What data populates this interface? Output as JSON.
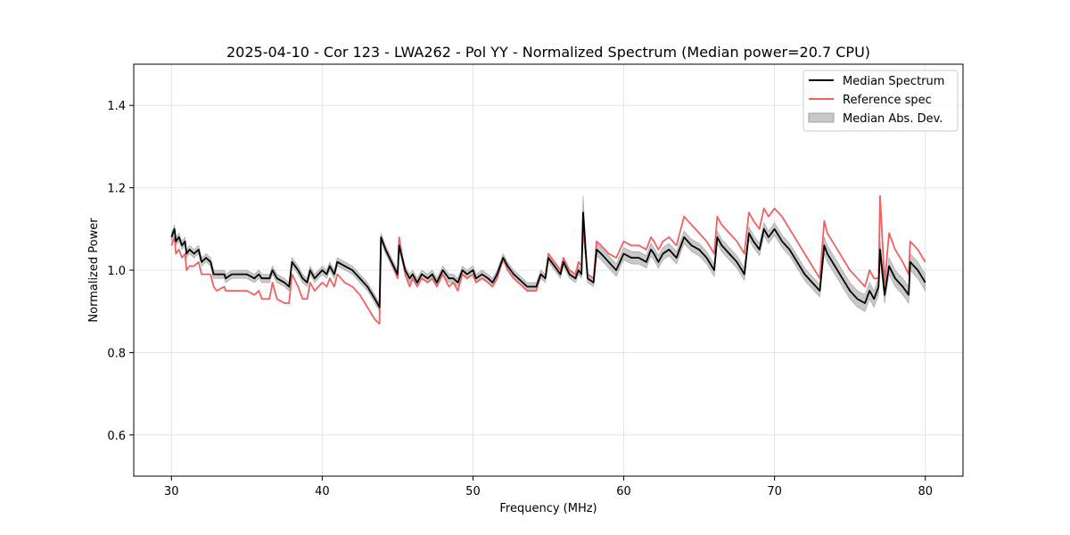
{
  "chart_data": {
    "type": "line",
    "title": "2025-04-10 - Cor 123 - LWA262 - Pol YY - Normalized Spectrum (Median power=20.7 CPU)",
    "xlabel": "Frequency (MHz)",
    "ylabel": "Normalized Power",
    "xlim": [
      27.5,
      82.5
    ],
    "ylim": [
      0.5,
      1.5
    ],
    "xticks": [
      30,
      40,
      50,
      60,
      70,
      80
    ],
    "xtick_labels": [
      "30",
      "40",
      "50",
      "60",
      "70",
      "80"
    ],
    "yticks": [
      0.6,
      0.8,
      1.0,
      1.2,
      1.4
    ],
    "ytick_labels": [
      "0.6",
      "0.8",
      "1.0",
      "1.2",
      "1.4"
    ],
    "grid": true,
    "legend_position": "top-right",
    "series": [
      {
        "name": "Median Spectrum",
        "color": "#000000",
        "x": [
          30.0,
          30.2,
          30.3,
          30.5,
          30.7,
          30.9,
          31.0,
          31.2,
          31.5,
          31.8,
          32.0,
          32.3,
          32.6,
          32.8,
          33.0,
          33.5,
          33.6,
          34.0,
          34.5,
          35.0,
          35.5,
          35.8,
          36.0,
          36.5,
          36.7,
          37.0,
          37.5,
          37.8,
          38.0,
          38.4,
          38.7,
          39.0,
          39.2,
          39.5,
          40.0,
          40.3,
          40.5,
          40.8,
          41.0,
          41.5,
          42.0,
          42.5,
          43.0,
          43.5,
          43.8,
          43.9,
          44.2,
          44.6,
          45.0,
          45.1,
          45.5,
          45.8,
          46.0,
          46.3,
          46.6,
          47.0,
          47.3,
          47.6,
          48.0,
          48.4,
          48.7,
          49.0,
          49.3,
          49.6,
          50.0,
          50.2,
          50.6,
          51.0,
          51.3,
          51.6,
          52.0,
          52.3,
          52.7,
          53.0,
          53.3,
          53.6,
          54.0,
          54.2,
          54.5,
          54.8,
          55.0,
          55.4,
          55.8,
          56.0,
          56.4,
          56.8,
          57.0,
          57.2,
          57.3,
          57.6,
          58.0,
          58.2,
          58.5,
          59.0,
          59.5,
          60.0,
          60.5,
          61.0,
          61.5,
          61.8,
          62.0,
          62.3,
          62.6,
          63.0,
          63.5,
          64.0,
          64.5,
          65.0,
          65.5,
          66.0,
          66.2,
          66.5,
          67.0,
          67.5,
          68.0,
          68.3,
          68.6,
          69.0,
          69.3,
          69.6,
          69.8,
          70.0,
          70.5,
          71.0,
          71.5,
          72.0,
          72.5,
          73.0,
          73.3,
          73.5,
          74.0,
          74.5,
          75.0,
          75.5,
          76.0,
          76.3,
          76.6,
          76.9,
          77.0,
          77.3,
          77.6,
          78.0,
          78.5,
          78.9,
          79.0,
          79.5,
          80.0
        ],
        "y": [
          1.08,
          1.1,
          1.07,
          1.08,
          1.06,
          1.07,
          1.04,
          1.05,
          1.04,
          1.05,
          1.02,
          1.03,
          1.02,
          0.99,
          0.99,
          0.99,
          0.98,
          0.99,
          0.99,
          0.99,
          0.98,
          0.99,
          0.98,
          0.98,
          1.0,
          0.98,
          0.97,
          0.96,
          1.02,
          1.0,
          0.98,
          0.97,
          1.0,
          0.98,
          1.0,
          0.99,
          1.01,
          0.99,
          1.02,
          1.01,
          1.0,
          0.98,
          0.96,
          0.93,
          0.91,
          1.08,
          1.05,
          1.02,
          0.99,
          1.06,
          1.0,
          0.98,
          0.99,
          0.97,
          0.99,
          0.98,
          0.99,
          0.97,
          1.0,
          0.98,
          0.98,
          0.97,
          1.0,
          0.99,
          1.0,
          0.98,
          0.99,
          0.98,
          0.97,
          0.99,
          1.03,
          1.01,
          0.99,
          0.98,
          0.97,
          0.96,
          0.96,
          0.96,
          0.99,
          0.98,
          1.03,
          1.01,
          0.99,
          1.02,
          0.99,
          0.98,
          1.0,
          0.99,
          1.14,
          0.98,
          0.97,
          1.05,
          1.04,
          1.02,
          1.0,
          1.04,
          1.03,
          1.03,
          1.02,
          1.05,
          1.04,
          1.02,
          1.04,
          1.05,
          1.03,
          1.08,
          1.06,
          1.05,
          1.03,
          1.0,
          1.08,
          1.06,
          1.04,
          1.02,
          0.99,
          1.09,
          1.07,
          1.05,
          1.1,
          1.08,
          1.09,
          1.1,
          1.07,
          1.05,
          1.02,
          0.99,
          0.97,
          0.95,
          1.06,
          1.04,
          1.01,
          0.98,
          0.95,
          0.93,
          0.92,
          0.95,
          0.93,
          0.96,
          1.05,
          0.94,
          1.01,
          0.98,
          0.96,
          0.94,
          1.02,
          1.0,
          0.97
        ],
        "band_halfwidth": [
          0.01,
          0.01,
          0.01,
          0.01,
          0.01,
          0.01,
          0.01,
          0.01,
          0.01,
          0.01,
          0.01,
          0.01,
          0.01,
          0.01,
          0.01,
          0.01,
          0.01,
          0.01,
          0.01,
          0.01,
          0.01,
          0.01,
          0.01,
          0.01,
          0.01,
          0.01,
          0.01,
          0.01,
          0.01,
          0.01,
          0.01,
          0.01,
          0.01,
          0.01,
          0.01,
          0.01,
          0.01,
          0.01,
          0.01,
          0.01,
          0.01,
          0.01,
          0.01,
          0.01,
          0.01,
          0.01,
          0.01,
          0.01,
          0.01,
          0.01,
          0.01,
          0.01,
          0.01,
          0.01,
          0.01,
          0.01,
          0.01,
          0.01,
          0.01,
          0.01,
          0.01,
          0.01,
          0.01,
          0.01,
          0.01,
          0.01,
          0.01,
          0.01,
          0.01,
          0.01,
          0.01,
          0.01,
          0.01,
          0.01,
          0.01,
          0.01,
          0.01,
          0.01,
          0.01,
          0.01,
          0.01,
          0.01,
          0.01,
          0.01,
          0.01,
          0.01,
          0.01,
          0.01,
          0.04,
          0.01,
          0.01,
          0.015,
          0.015,
          0.015,
          0.015,
          0.015,
          0.015,
          0.015,
          0.015,
          0.015,
          0.015,
          0.015,
          0.015,
          0.015,
          0.015,
          0.015,
          0.015,
          0.015,
          0.015,
          0.015,
          0.015,
          0.015,
          0.015,
          0.015,
          0.015,
          0.015,
          0.015,
          0.015,
          0.015,
          0.015,
          0.015,
          0.015,
          0.015,
          0.015,
          0.015,
          0.015,
          0.015,
          0.015,
          0.02,
          0.02,
          0.02,
          0.02,
          0.02,
          0.02,
          0.02,
          0.02,
          0.02,
          0.02,
          0.02,
          0.02,
          0.02,
          0.02,
          0.02,
          0.02,
          0.02,
          0.02,
          0.02
        ]
      },
      {
        "name": "Reference spec",
        "color": "#f06060",
        "x": [
          30.0,
          30.2,
          30.3,
          30.5,
          30.7,
          30.9,
          31.0,
          31.2,
          31.5,
          31.8,
          32.0,
          32.3,
          32.6,
          32.8,
          33.0,
          33.5,
          33.6,
          34.0,
          34.5,
          35.0,
          35.5,
          35.8,
          36.0,
          36.5,
          36.7,
          37.0,
          37.5,
          37.8,
          38.0,
          38.4,
          38.7,
          39.0,
          39.2,
          39.5,
          40.0,
          40.3,
          40.5,
          40.8,
          41.0,
          41.5,
          42.0,
          42.5,
          43.0,
          43.5,
          43.8,
          43.9,
          44.2,
          44.6,
          45.0,
          45.1,
          45.5,
          45.8,
          46.0,
          46.3,
          46.6,
          47.0,
          47.3,
          47.6,
          48.0,
          48.4,
          48.7,
          49.0,
          49.3,
          49.6,
          50.0,
          50.2,
          50.6,
          51.0,
          51.3,
          51.6,
          52.0,
          52.3,
          52.7,
          53.0,
          53.3,
          53.6,
          54.0,
          54.2,
          54.5,
          54.8,
          55.0,
          55.4,
          55.8,
          56.0,
          56.4,
          56.8,
          57.0,
          57.2,
          57.3,
          57.6,
          58.0,
          58.2,
          58.5,
          59.0,
          59.5,
          60.0,
          60.5,
          61.0,
          61.5,
          61.8,
          62.0,
          62.3,
          62.6,
          63.0,
          63.5,
          64.0,
          64.5,
          65.0,
          65.5,
          66.0,
          66.2,
          66.5,
          67.0,
          67.5,
          68.0,
          68.3,
          68.6,
          69.0,
          69.3,
          69.6,
          69.8,
          70.0,
          70.5,
          71.0,
          71.5,
          72.0,
          72.5,
          73.0,
          73.3,
          73.5,
          74.0,
          74.5,
          75.0,
          75.5,
          76.0,
          76.3,
          76.6,
          76.9,
          77.0,
          77.3,
          77.6,
          78.0,
          78.5,
          78.9,
          79.0,
          79.5,
          80.0
        ],
        "y": [
          1.06,
          1.08,
          1.04,
          1.05,
          1.03,
          1.04,
          1.0,
          1.01,
          1.01,
          1.02,
          0.99,
          0.99,
          0.99,
          0.96,
          0.95,
          0.96,
          0.95,
          0.95,
          0.95,
          0.95,
          0.94,
          0.95,
          0.93,
          0.93,
          0.97,
          0.93,
          0.92,
          0.92,
          0.99,
          0.96,
          0.93,
          0.93,
          0.97,
          0.95,
          0.97,
          0.96,
          0.98,
          0.96,
          0.99,
          0.97,
          0.96,
          0.94,
          0.91,
          0.88,
          0.87,
          1.08,
          1.05,
          1.02,
          0.98,
          1.08,
          0.99,
          0.96,
          0.98,
          0.96,
          0.98,
          0.97,
          0.98,
          0.96,
          0.99,
          0.96,
          0.97,
          0.95,
          0.99,
          0.98,
          0.99,
          0.97,
          0.98,
          0.97,
          0.96,
          0.98,
          1.03,
          1.0,
          0.98,
          0.97,
          0.96,
          0.95,
          0.95,
          0.95,
          0.99,
          0.98,
          1.04,
          1.02,
          1.0,
          1.03,
          1.0,
          0.99,
          1.02,
          1.01,
          1.1,
          0.99,
          0.98,
          1.07,
          1.06,
          1.04,
          1.03,
          1.07,
          1.06,
          1.06,
          1.05,
          1.08,
          1.07,
          1.05,
          1.07,
          1.08,
          1.06,
          1.13,
          1.11,
          1.09,
          1.07,
          1.04,
          1.13,
          1.11,
          1.09,
          1.07,
          1.04,
          1.14,
          1.12,
          1.1,
          1.15,
          1.13,
          1.14,
          1.15,
          1.13,
          1.1,
          1.07,
          1.04,
          1.01,
          0.98,
          1.12,
          1.09,
          1.06,
          1.03,
          1.0,
          0.98,
          0.96,
          1.0,
          0.98,
          0.98,
          1.18,
          0.97,
          1.09,
          1.05,
          1.02,
          0.99,
          1.07,
          1.05,
          1.02
        ]
      },
      {
        "name": "Median Abs. Dev.",
        "color": "#a0a0a0",
        "kind": "band"
      }
    ]
  }
}
